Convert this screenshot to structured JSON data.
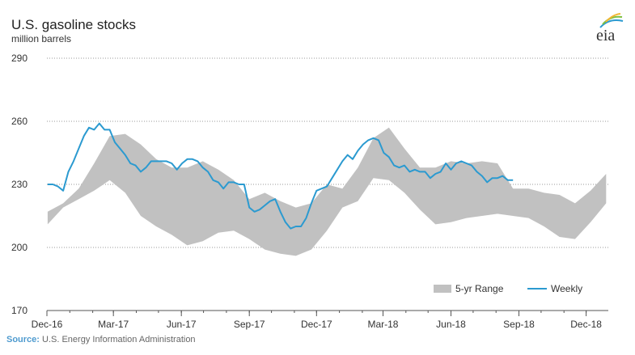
{
  "header": {
    "title": "U.S. gasoline stocks",
    "subtitle": "million barrels"
  },
  "logo": {
    "text": "eia",
    "icon": "eia-logo-icon"
  },
  "source": {
    "label": "Source:",
    "text": " U.S. Energy Information Administration"
  },
  "colors": {
    "range": "#c1c1c1",
    "weekly": "#2b9ad0",
    "grid": "#9a9a9a",
    "axis": "#555555"
  },
  "chart_data": {
    "type": "area",
    "title": "U.S. gasoline stocks",
    "ylabel": "million barrels",
    "ylim": [
      170,
      290
    ],
    "yticks": [
      170,
      200,
      230,
      260,
      290
    ],
    "xlim": [
      "2016-12-01",
      "2018-12-31"
    ],
    "xticks": [
      {
        "date": "2016-12-01",
        "label": "Dec-16"
      },
      {
        "date": "2017-03-01",
        "label": "Mar-17"
      },
      {
        "date": "2017-06-01",
        "label": "Jun-17"
      },
      {
        "date": "2017-09-01",
        "label": "Sep-17"
      },
      {
        "date": "2017-12-01",
        "label": "Dec-17"
      },
      {
        "date": "2018-03-01",
        "label": "Mar-18"
      },
      {
        "date": "2018-06-01",
        "label": "Jun-18"
      },
      {
        "date": "2018-09-01",
        "label": "Sep-18"
      },
      {
        "date": "2018-12-01",
        "label": "Dec-18"
      }
    ],
    "grid": "horizontal dotted",
    "legend_position": "bottom-right",
    "series": [
      {
        "name": "5-yr Range",
        "kind": "band",
        "x": [
          "2016-12-02",
          "2016-12-23",
          "2017-01-13",
          "2017-02-03",
          "2017-02-24",
          "2017-03-17",
          "2017-04-07",
          "2017-04-28",
          "2017-05-19",
          "2017-06-09",
          "2017-06-30",
          "2017-07-21",
          "2017-08-11",
          "2017-09-01",
          "2017-09-22",
          "2017-10-13",
          "2017-11-03",
          "2017-11-24",
          "2017-12-15",
          "2018-01-05",
          "2018-01-26",
          "2018-02-16",
          "2018-03-09",
          "2018-03-30",
          "2018-04-20",
          "2018-05-11",
          "2018-06-01",
          "2018-06-22",
          "2018-07-13",
          "2018-08-03",
          "2018-08-24",
          "2018-09-14",
          "2018-10-05",
          "2018-10-26",
          "2018-11-16",
          "2018-12-07",
          "2018-12-28"
        ],
        "low": [
          211,
          219,
          223,
          227,
          232,
          226,
          215,
          210,
          206,
          201,
          203,
          207,
          208,
          204,
          199,
          197,
          196,
          199,
          208,
          219,
          222,
          233,
          232,
          226,
          218,
          211,
          212,
          214,
          215,
          216,
          215,
          214,
          210,
          205,
          204,
          212,
          221
        ],
        "high": [
          217,
          221,
          228,
          240,
          253,
          254,
          249,
          242,
          238,
          238,
          241,
          237,
          232,
          223,
          226,
          222,
          219,
          221,
          230,
          228,
          238,
          252,
          257,
          247,
          238,
          238,
          241,
          240,
          241,
          240,
          228,
          228,
          226,
          225,
          221,
          227,
          235
        ]
      },
      {
        "name": "Weekly",
        "kind": "line",
        "x": [
          "2016-12-02",
          "2016-12-09",
          "2016-12-16",
          "2016-12-23",
          "2016-12-30",
          "2017-01-06",
          "2017-01-13",
          "2017-01-20",
          "2017-01-27",
          "2017-02-03",
          "2017-02-10",
          "2017-02-17",
          "2017-02-24",
          "2017-03-03",
          "2017-03-10",
          "2017-03-17",
          "2017-03-24",
          "2017-03-31",
          "2017-04-07",
          "2017-04-14",
          "2017-04-21",
          "2017-04-28",
          "2017-05-05",
          "2017-05-12",
          "2017-05-19",
          "2017-05-26",
          "2017-06-02",
          "2017-06-09",
          "2017-06-16",
          "2017-06-23",
          "2017-06-30",
          "2017-07-07",
          "2017-07-14",
          "2017-07-21",
          "2017-07-28",
          "2017-08-04",
          "2017-08-11",
          "2017-08-18",
          "2017-08-25",
          "2017-09-01",
          "2017-09-08",
          "2017-09-15",
          "2017-09-22",
          "2017-09-29",
          "2017-10-06",
          "2017-10-13",
          "2017-10-20",
          "2017-10-27",
          "2017-11-03",
          "2017-11-10",
          "2017-11-17",
          "2017-11-24",
          "2017-12-01",
          "2017-12-08",
          "2017-12-15",
          "2017-12-22",
          "2017-12-29",
          "2018-01-05",
          "2018-01-12",
          "2018-01-19",
          "2018-01-26",
          "2018-02-02",
          "2018-02-09",
          "2018-02-16",
          "2018-02-23",
          "2018-03-02",
          "2018-03-09",
          "2018-03-16",
          "2018-03-23",
          "2018-03-30",
          "2018-04-06",
          "2018-04-13",
          "2018-04-20",
          "2018-04-27",
          "2018-05-04",
          "2018-05-11",
          "2018-05-18",
          "2018-05-25",
          "2018-06-01",
          "2018-06-08",
          "2018-06-15",
          "2018-06-22",
          "2018-06-29",
          "2018-07-06",
          "2018-07-13",
          "2018-07-20",
          "2018-07-27",
          "2018-08-03",
          "2018-08-10",
          "2018-08-17",
          "2018-08-24"
        ],
        "values": [
          230,
          230,
          229,
          227,
          236,
          241,
          247,
          253,
          257,
          256,
          259,
          256,
          256,
          250,
          247,
          244,
          240,
          239,
          236,
          238,
          241,
          241,
          241,
          241,
          240,
          237,
          240,
          242,
          242,
          241,
          238,
          236,
          232,
          231,
          228,
          231,
          231,
          230,
          230,
          219,
          217,
          218,
          220,
          222,
          223,
          217,
          212,
          209,
          210,
          210,
          214,
          221,
          227,
          228,
          229,
          233,
          237,
          241,
          244,
          242,
          246,
          249,
          251,
          252,
          251,
          245,
          243,
          239,
          238,
          239,
          236,
          237,
          236,
          236,
          233,
          235,
          236,
          240,
          237,
          240,
          241,
          240,
          239,
          236,
          234,
          231,
          233,
          233,
          234,
          232,
          232
        ]
      }
    ]
  }
}
